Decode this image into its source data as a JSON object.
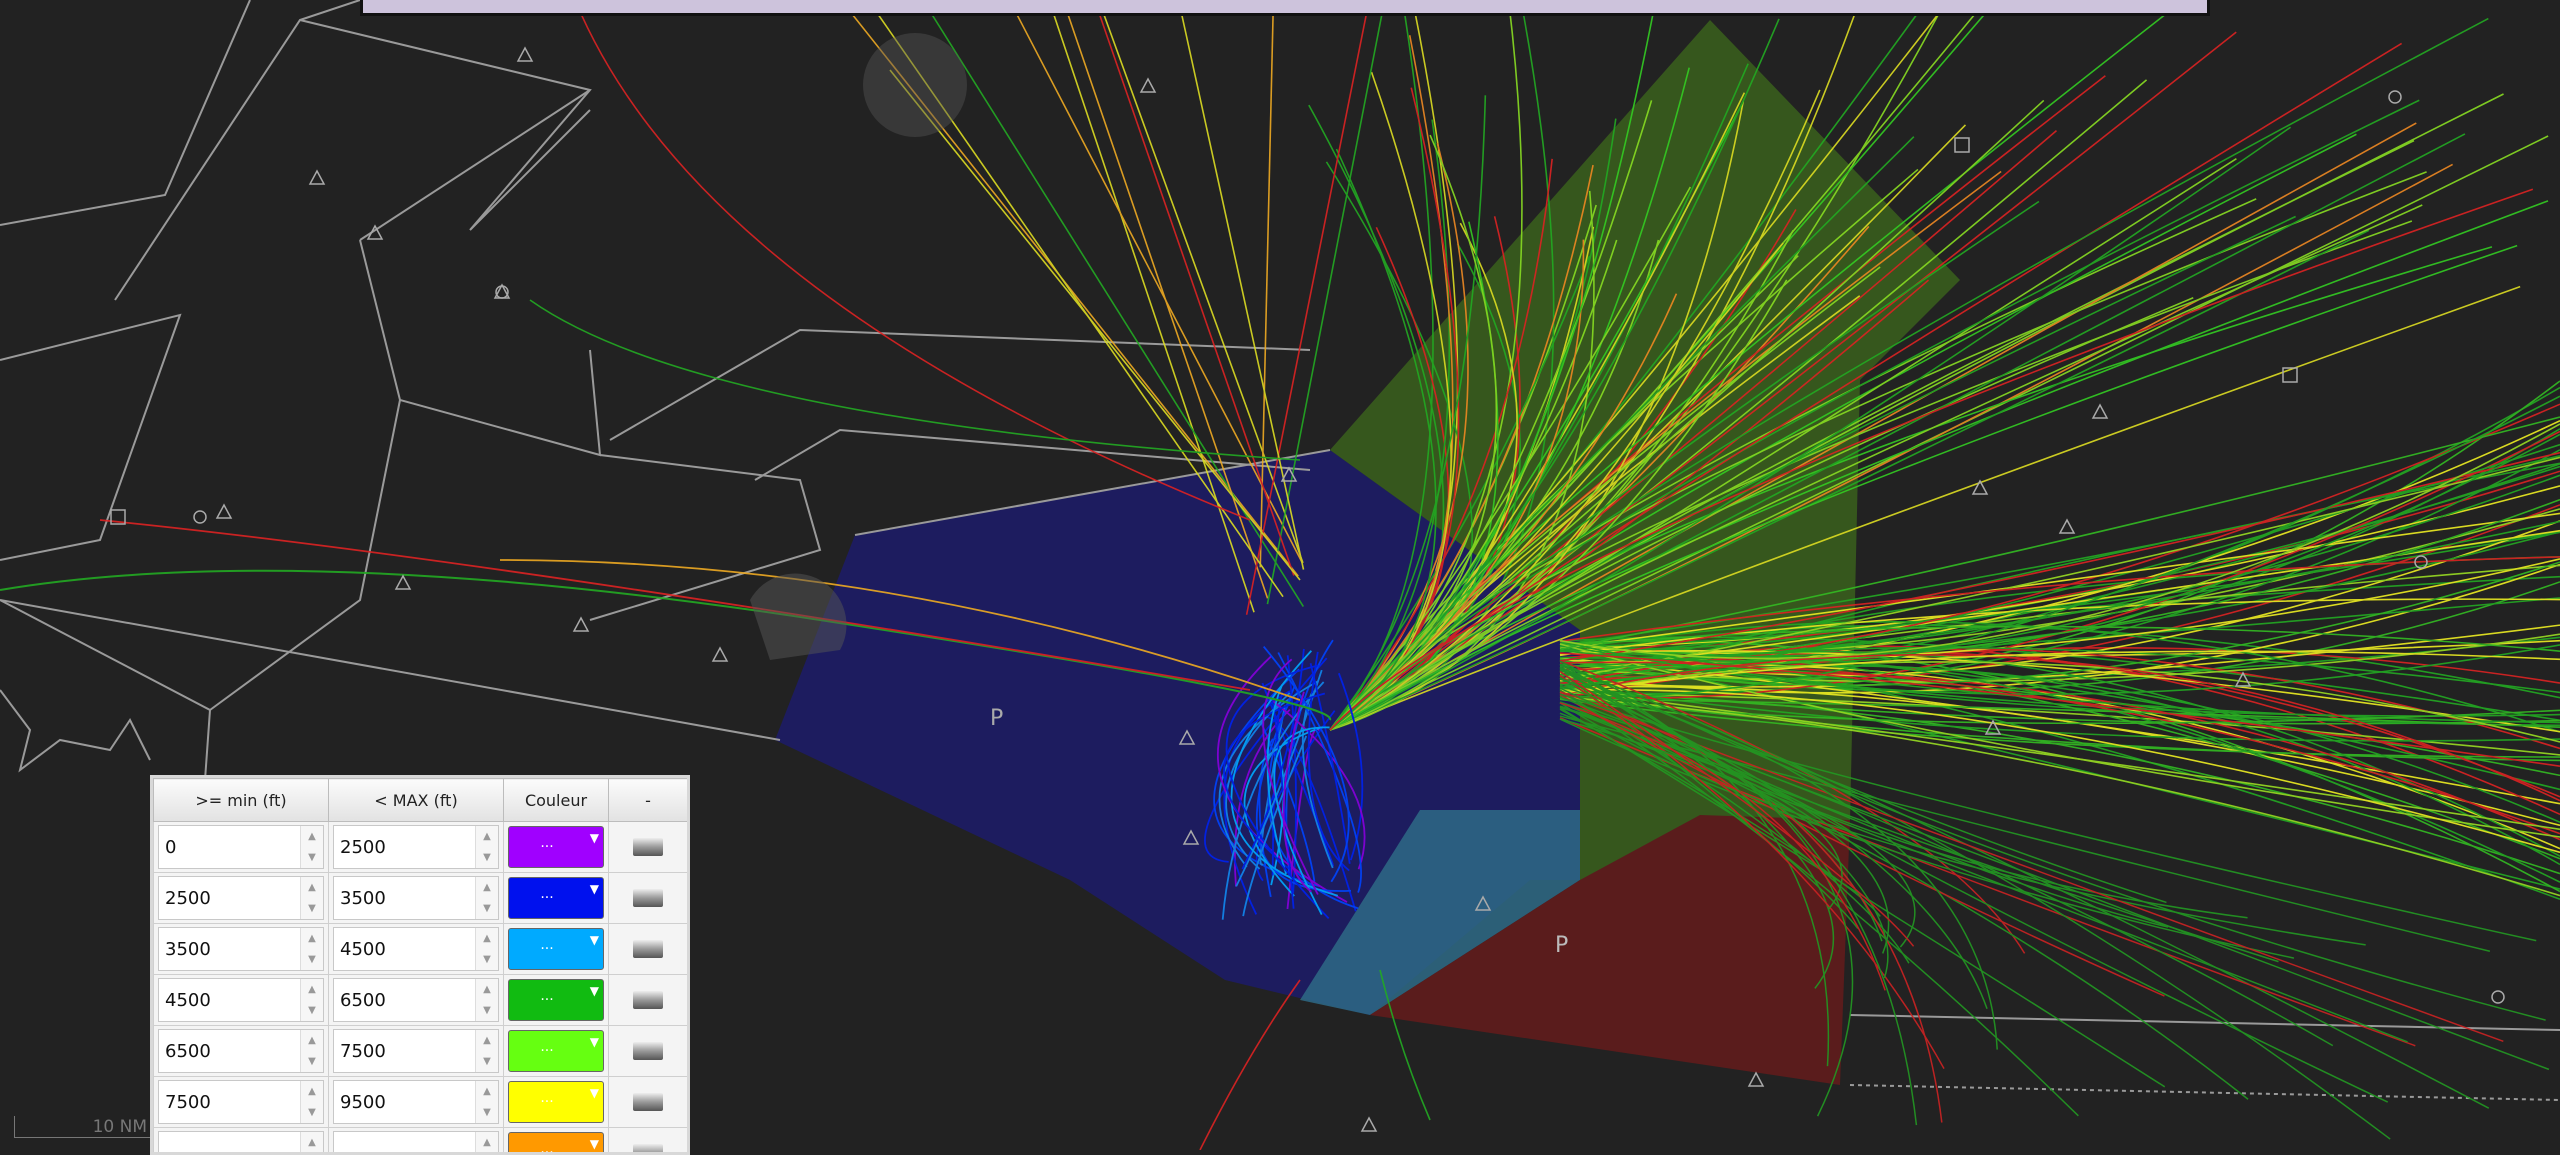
{
  "map": {
    "scale_label": "10 NM",
    "zone_labels": [
      "P",
      "P"
    ],
    "colors": {
      "background": "#222222",
      "zone_blue": "#1b1a62",
      "zone_green": "#3a5a1a",
      "zone_teal": "#2d5a70",
      "zone_red": "#5a1a1a",
      "boundary": "#9a9a9a"
    }
  },
  "legend": {
    "headers": {
      "min": ">= min (ft)",
      "max": "< MAX (ft)",
      "color": "Couleur",
      "del": "-"
    },
    "swatch_dots": "...",
    "rows": [
      {
        "min": "0",
        "max": "2500",
        "color": "#a000ff"
      },
      {
        "min": "2500",
        "max": "3500",
        "color": "#0011ee"
      },
      {
        "min": "3500",
        "max": "4500",
        "color": "#00aaff"
      },
      {
        "min": "4500",
        "max": "6500",
        "color": "#11bb11"
      },
      {
        "min": "6500",
        "max": "7500",
        "color": "#66ff11"
      },
      {
        "min": "7500",
        "max": "9500",
        "color": "#ffff00"
      },
      {
        "min": "",
        "max": "",
        "color": "#ff9900"
      }
    ]
  }
}
